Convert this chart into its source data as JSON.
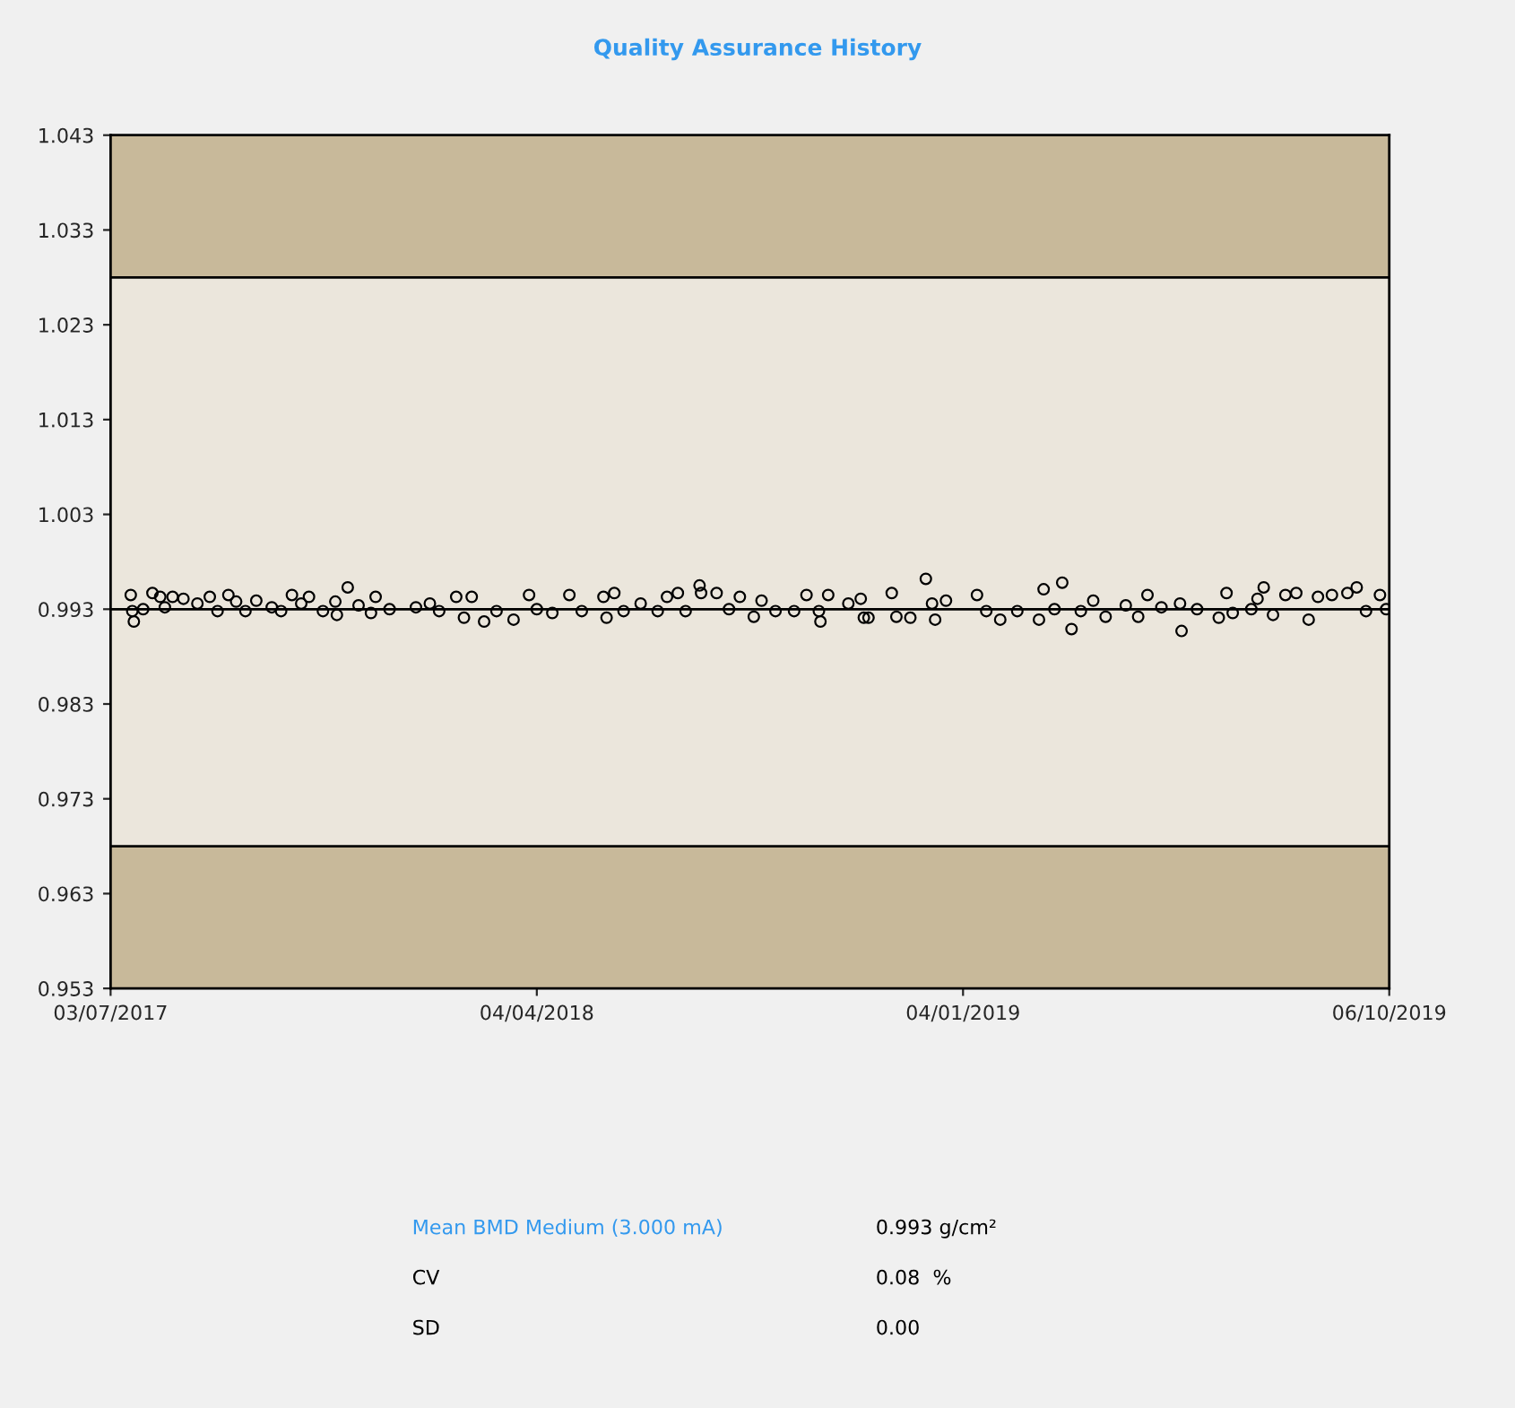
{
  "chart_data": {
    "type": "scatter",
    "title": "Quality Assurance History",
    "marker": "circle",
    "grid": false,
    "x": [
      "2017-07-16",
      "2017-07-17",
      "2017-07-18",
      "2017-07-24",
      "2017-07-30",
      "2017-08-04",
      "2017-08-07",
      "2017-08-12",
      "2017-08-19",
      "2017-08-28",
      "2017-09-05",
      "2017-09-10",
      "2017-09-17",
      "2017-09-22",
      "2017-09-28",
      "2017-10-05",
      "2017-10-15",
      "2017-10-21",
      "2017-10-28",
      "2017-11-03",
      "2017-11-08",
      "2017-11-17",
      "2017-11-25",
      "2017-11-26",
      "2017-12-03",
      "2017-12-10",
      "2017-12-18",
      "2017-12-21",
      "2017-12-30",
      "2018-01-16",
      "2018-01-25",
      "2018-01-31",
      "2018-02-11",
      "2018-02-16",
      "2018-02-21",
      "2018-03-01",
      "2018-03-09",
      "2018-03-20",
      "2018-03-30",
      "2018-04-04",
      "2018-04-14",
      "2018-04-25",
      "2018-05-03",
      "2018-05-17",
      "2018-05-19",
      "2018-05-24",
      "2018-05-30",
      "2018-06-10",
      "2018-06-21",
      "2018-06-27",
      "2018-07-04",
      "2018-07-09",
      "2018-07-18",
      "2018-07-19",
      "2018-07-29",
      "2018-08-06",
      "2018-08-13",
      "2018-08-22",
      "2018-08-27",
      "2018-09-05",
      "2018-09-17",
      "2018-09-25",
      "2018-10-03",
      "2018-10-04",
      "2018-10-09",
      "2018-10-22",
      "2018-10-30",
      "2018-11-01",
      "2018-11-04",
      "2018-11-19",
      "2018-11-22",
      "2018-12-01",
      "2018-12-11",
      "2018-12-15",
      "2018-12-17",
      "2018-12-24",
      "2019-01-13",
      "2019-01-19",
      "2019-01-28",
      "2019-02-08",
      "2019-02-22",
      "2019-02-25",
      "2019-03-04",
      "2019-03-09",
      "2019-03-15",
      "2019-03-21",
      "2019-03-29",
      "2019-04-06",
      "2019-04-19",
      "2019-04-27",
      "2019-05-03",
      "2019-05-12",
      "2019-05-24",
      "2019-05-25",
      "2019-06-04",
      "2019-06-18",
      "2019-06-23",
      "2019-06-27",
      "2019-07-09",
      "2019-07-13",
      "2019-07-17",
      "2019-07-23",
      "2019-07-31",
      "2019-08-07",
      "2019-08-15",
      "2019-08-21",
      "2019-08-30",
      "2019-09-09",
      "2019-09-15",
      "2019-09-21",
      "2019-09-30",
      "2019-10-04"
    ],
    "series": [
      {
        "color": "#000000",
        "values": [
          0.9945,
          0.9928,
          0.9917,
          0.993,
          0.9947,
          0.9943,
          0.9932,
          0.9943,
          0.9941,
          0.9936,
          0.9943,
          0.9928,
          0.9945,
          0.9938,
          0.9928,
          0.9939,
          0.9932,
          0.9928,
          0.9945,
          0.9936,
          0.9943,
          0.9928,
          0.9938,
          0.9924,
          0.9953,
          0.9934,
          0.9926,
          0.9943,
          0.993,
          0.9932,
          0.9936,
          0.9928,
          0.9943,
          0.9921,
          0.9943,
          0.9917,
          0.9928,
          0.9919,
          0.9945,
          0.993,
          0.9926,
          0.9945,
          0.9928,
          0.9943,
          0.9921,
          0.9947,
          0.9928,
          0.9936,
          0.9928,
          0.9943,
          0.9947,
          0.9928,
          0.9955,
          0.9947,
          0.9947,
          0.993,
          0.9943,
          0.9922,
          0.9939,
          0.9928,
          0.9928,
          0.9945,
          0.9928,
          0.9917,
          0.9945,
          0.9936,
          0.9941,
          0.9921,
          0.9921,
          0.9947,
          0.9922,
          0.9921,
          0.9962,
          0.9936,
          0.9919,
          0.9939,
          0.9945,
          0.9928,
          0.9919,
          0.9928,
          0.9919,
          0.9951,
          0.993,
          0.9958,
          0.9909,
          0.9928,
          0.9939,
          0.9922,
          0.9934,
          0.9922,
          0.9945,
          0.9932,
          0.9936,
          0.9907,
          0.993,
          0.9921,
          0.9947,
          0.9926,
          0.993,
          0.9941,
          0.9953,
          0.9924,
          0.9945,
          0.9947,
          0.9919,
          0.9943,
          0.9945,
          0.9947,
          0.9953,
          0.9928,
          0.9945,
          0.993
        ]
      }
    ],
    "xlim": [
      "2017-07-03",
      "2019-10-06"
    ],
    "xticks": [
      {
        "value": "2017-07-03",
        "label": "03/07/2017"
      },
      {
        "value": "2018-04-04",
        "label": "04/04/2018"
      },
      {
        "value": "2019-01-04",
        "label": "04/01/2019"
      },
      {
        "value": "2019-10-06",
        "label": "06/10/2019"
      }
    ],
    "ylim": [
      0.953,
      1.043
    ],
    "yticks": [
      0.953,
      0.963,
      0.973,
      0.983,
      0.993,
      1.003,
      1.013,
      1.023,
      1.033,
      1.043
    ],
    "bands": [
      {
        "axis": "y",
        "from": 0.953,
        "to": 0.968,
        "color": "#c8b99a"
      },
      {
        "axis": "y",
        "from": 0.968,
        "to": 1.028,
        "color": "#ebe6dc"
      },
      {
        "axis": "y",
        "from": 1.028,
        "to": 1.043,
        "color": "#c8b99a"
      }
    ],
    "ref_lines": [
      {
        "axis": "y",
        "value": 0.968,
        "color": "#000000"
      },
      {
        "axis": "y",
        "value": 0.993,
        "color": "#000000"
      },
      {
        "axis": "y",
        "value": 1.028,
        "color": "#000000"
      }
    ],
    "annotations": [
      "Mean BMD Medium (3.000 mA)",
      "0.993 g/cm²",
      "CV",
      "0.08  %",
      "SD",
      "0.00"
    ]
  }
}
